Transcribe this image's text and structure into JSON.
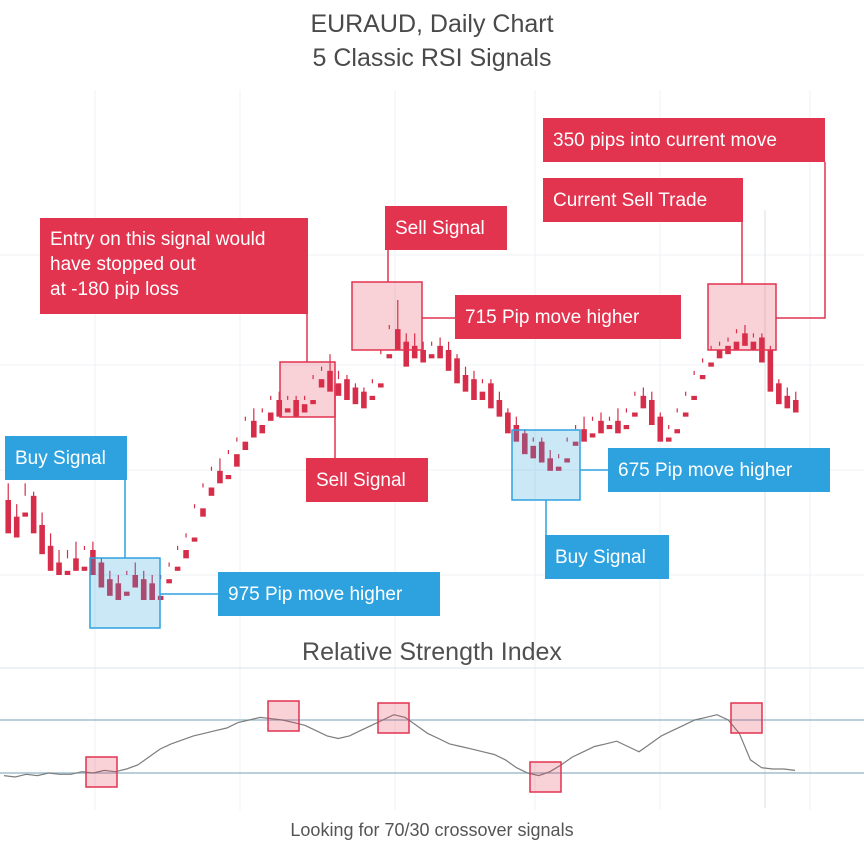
{
  "title_line1": "EURAUD, Daily Chart",
  "title_line2": "5 Classic RSI Signals",
  "rsi_title": "Relative Strength Index",
  "footer": "Looking for 70/30 crossover signals",
  "colors": {
    "sell": "#e2334f",
    "buy": "#2ea2df",
    "up_candle": "#26a65b",
    "down_candle": "#d62d4a",
    "rsi_line": "#7d7d7d",
    "rsi_levels": "#8fb3c7"
  },
  "annotations": {
    "current_move": "350 pips into current move",
    "current_sell_trade": "Current Sell Trade",
    "entry_note": "Entry on this signal would\nhave stopped out\nat -180 pip loss",
    "sell_signal_1": "Sell Signal",
    "sell_signal_2": "Sell Signal",
    "move_715": "715 Pip move higher",
    "buy_signal_1": "Buy Signal",
    "move_975": "975 Pip move higher",
    "move_675": "675 Pip move higher",
    "buy_signal_2": "Buy Signal"
  },
  "chart_data": {
    "type": "candlestick",
    "title": "EURAUD, Daily Chart",
    "subtitle": "5 Classic RSI Signals",
    "indicator": {
      "name": "Relative Strength Index",
      "levels": [
        70,
        30
      ],
      "values": [
        28,
        27,
        29,
        28,
        30,
        29,
        29,
        31,
        30,
        32,
        31,
        33,
        36,
        42,
        48,
        52,
        55,
        58,
        60,
        62,
        64,
        68,
        70,
        72,
        71,
        70,
        68,
        66,
        62,
        58,
        56,
        58,
        62,
        66,
        70,
        74,
        72,
        66,
        60,
        56,
        52,
        50,
        48,
        46,
        44,
        40,
        34,
        30,
        28,
        31,
        36,
        42,
        46,
        50,
        52,
        54,
        50,
        46,
        52,
        58,
        62,
        66,
        70,
        72,
        74,
        70,
        60,
        40,
        34,
        33,
        33,
        32
      ]
    },
    "candles": [
      [
        48,
        52,
        44,
        40
      ],
      [
        44,
        47,
        43,
        39
      ],
      [
        45,
        52,
        49,
        44
      ],
      [
        49,
        50,
        42,
        40
      ],
      [
        42,
        45,
        37,
        35
      ],
      [
        37,
        40,
        33,
        31
      ],
      [
        33,
        36,
        31,
        30
      ],
      [
        31,
        36,
        34,
        30
      ],
      [
        34,
        38,
        32,
        31
      ],
      [
        32,
        37,
        36,
        31
      ],
      [
        36,
        38,
        33,
        30
      ],
      [
        33,
        34,
        29,
        27
      ],
      [
        29,
        31,
        28,
        25
      ],
      [
        28,
        30,
        26,
        24
      ],
      [
        26,
        31,
        30,
        25
      ],
      [
        30,
        33,
        29,
        27
      ],
      [
        29,
        31,
        28,
        24
      ],
      [
        28,
        30,
        25,
        24
      ],
      [
        25,
        30,
        29,
        24
      ],
      [
        29,
        33,
        32,
        28
      ],
      [
        32,
        37,
        36,
        31
      ],
      [
        36,
        40,
        39,
        34
      ],
      [
        39,
        47,
        46,
        38
      ],
      [
        46,
        52,
        51,
        44
      ],
      [
        51,
        56,
        55,
        49
      ],
      [
        55,
        58,
        54,
        52
      ],
      [
        54,
        60,
        59,
        53
      ],
      [
        59,
        63,
        62,
        56
      ],
      [
        62,
        68,
        67,
        60
      ],
      [
        67,
        70,
        66,
        63
      ],
      [
        66,
        70,
        69,
        64
      ],
      [
        69,
        73,
        72,
        67
      ],
      [
        72,
        74,
        70,
        68
      ],
      [
        70,
        73,
        72,
        69
      ],
      [
        72,
        73,
        71,
        68
      ],
      [
        71,
        73,
        72,
        69
      ],
      [
        72,
        78,
        77,
        71
      ],
      [
        77,
        80,
        79,
        75
      ],
      [
        79,
        83,
        76,
        74
      ],
      [
        76,
        79,
        77,
        73
      ],
      [
        77,
        78,
        75,
        72
      ],
      [
        75,
        76,
        74,
        71
      ],
      [
        74,
        75,
        73,
        70
      ],
      [
        73,
        77,
        76,
        72
      ],
      [
        76,
        84,
        83,
        75
      ],
      [
        83,
        90,
        89,
        82
      ],
      [
        89,
        96,
        86,
        84
      ],
      [
        86,
        88,
        85,
        80
      ],
      [
        85,
        88,
        84,
        82
      ],
      [
        84,
        86,
        83,
        81
      ],
      [
        83,
        86,
        85,
        82
      ],
      [
        85,
        87,
        84,
        82
      ],
      [
        84,
        86,
        82,
        79
      ],
      [
        82,
        83,
        78,
        76
      ],
      [
        78,
        80,
        77,
        74
      ],
      [
        77,
        79,
        74,
        72
      ],
      [
        74,
        77,
        76,
        72
      ],
      [
        76,
        77,
        72,
        70
      ],
      [
        72,
        74,
        69,
        68
      ],
      [
        69,
        70,
        66,
        64
      ],
      [
        66,
        68,
        64,
        62
      ],
      [
        64,
        65,
        61,
        59
      ],
      [
        61,
        63,
        62,
        58
      ],
      [
        62,
        63,
        58,
        57
      ],
      [
        58,
        60,
        56,
        55
      ],
      [
        56,
        59,
        58,
        55
      ],
      [
        58,
        63,
        62,
        57
      ],
      [
        62,
        66,
        65,
        61
      ],
      [
        65,
        68,
        64,
        62
      ],
      [
        64,
        68,
        67,
        63
      ],
      [
        67,
        69,
        66,
        64
      ],
      [
        66,
        68,
        67,
        65
      ],
      [
        67,
        70,
        66,
        64
      ],
      [
        66,
        70,
        69,
        65
      ],
      [
        69,
        74,
        73,
        68
      ],
      [
        73,
        75,
        72,
        70
      ],
      [
        72,
        74,
        68,
        66
      ],
      [
        68,
        69,
        63,
        62
      ],
      [
        63,
        66,
        65,
        62
      ],
      [
        65,
        70,
        69,
        64
      ],
      [
        69,
        74,
        73,
        68
      ],
      [
        73,
        79,
        78,
        72
      ],
      [
        78,
        82,
        81,
        77
      ],
      [
        81,
        85,
        84,
        80
      ],
      [
        84,
        86,
        85,
        82
      ],
      [
        85,
        87,
        86,
        83
      ],
      [
        86,
        89,
        88,
        84
      ],
      [
        88,
        90,
        86,
        85
      ],
      [
        86,
        88,
        87,
        84
      ],
      [
        87,
        88,
        84,
        81
      ],
      [
        84,
        85,
        76,
        74
      ],
      [
        76,
        77,
        73,
        71
      ],
      [
        73,
        75,
        72,
        70
      ],
      [
        72,
        74,
        71,
        69
      ]
    ],
    "candle_format": [
      "open",
      "high",
      "low",
      "close"
    ]
  }
}
